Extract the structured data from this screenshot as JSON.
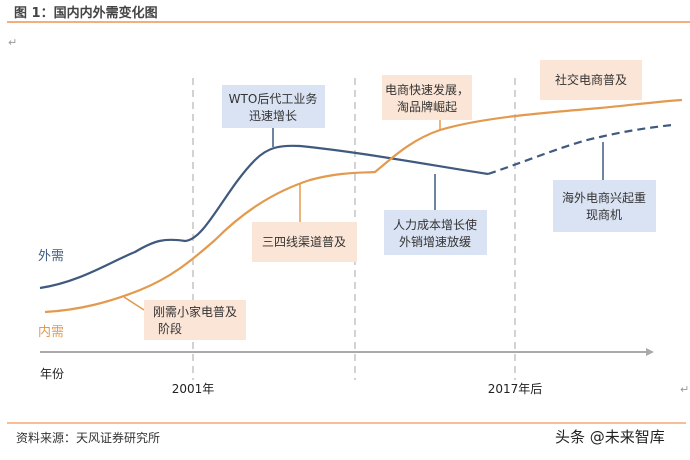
{
  "title": "图 1：国内内外需变化图",
  "return_mark": "↵",
  "colors": {
    "accent_line": "#ed7d31",
    "external_demand": "#3f5a7e",
    "domestic_demand": "#e39a4e",
    "blue_box": "#dae3f3",
    "orange_box": "#fbe5d6"
  },
  "series": {
    "external": "外需",
    "domestic": "内需"
  },
  "axis": {
    "label": "年份",
    "ticks": [
      "2001年",
      "2017年后"
    ]
  },
  "annotations": {
    "wto": [
      "WTO后代工业务",
      "迅速增长"
    ],
    "ecommerce": [
      "电商快速发展，",
      "淘品牌崛起"
    ],
    "social": [
      "社交电商普及"
    ],
    "lower_tier": [
      "三四线渠道普及"
    ],
    "labor": [
      "人力成本增长使",
      "外销增速放缓"
    ],
    "overseas": [
      "海外电商兴起重",
      "现商机"
    ],
    "appliance": [
      "刚需小家电普及",
      "阶段"
    ]
  },
  "footer": {
    "source": "资料来源：天风证券研究所",
    "watermark": "头条 @未来智库"
  }
}
